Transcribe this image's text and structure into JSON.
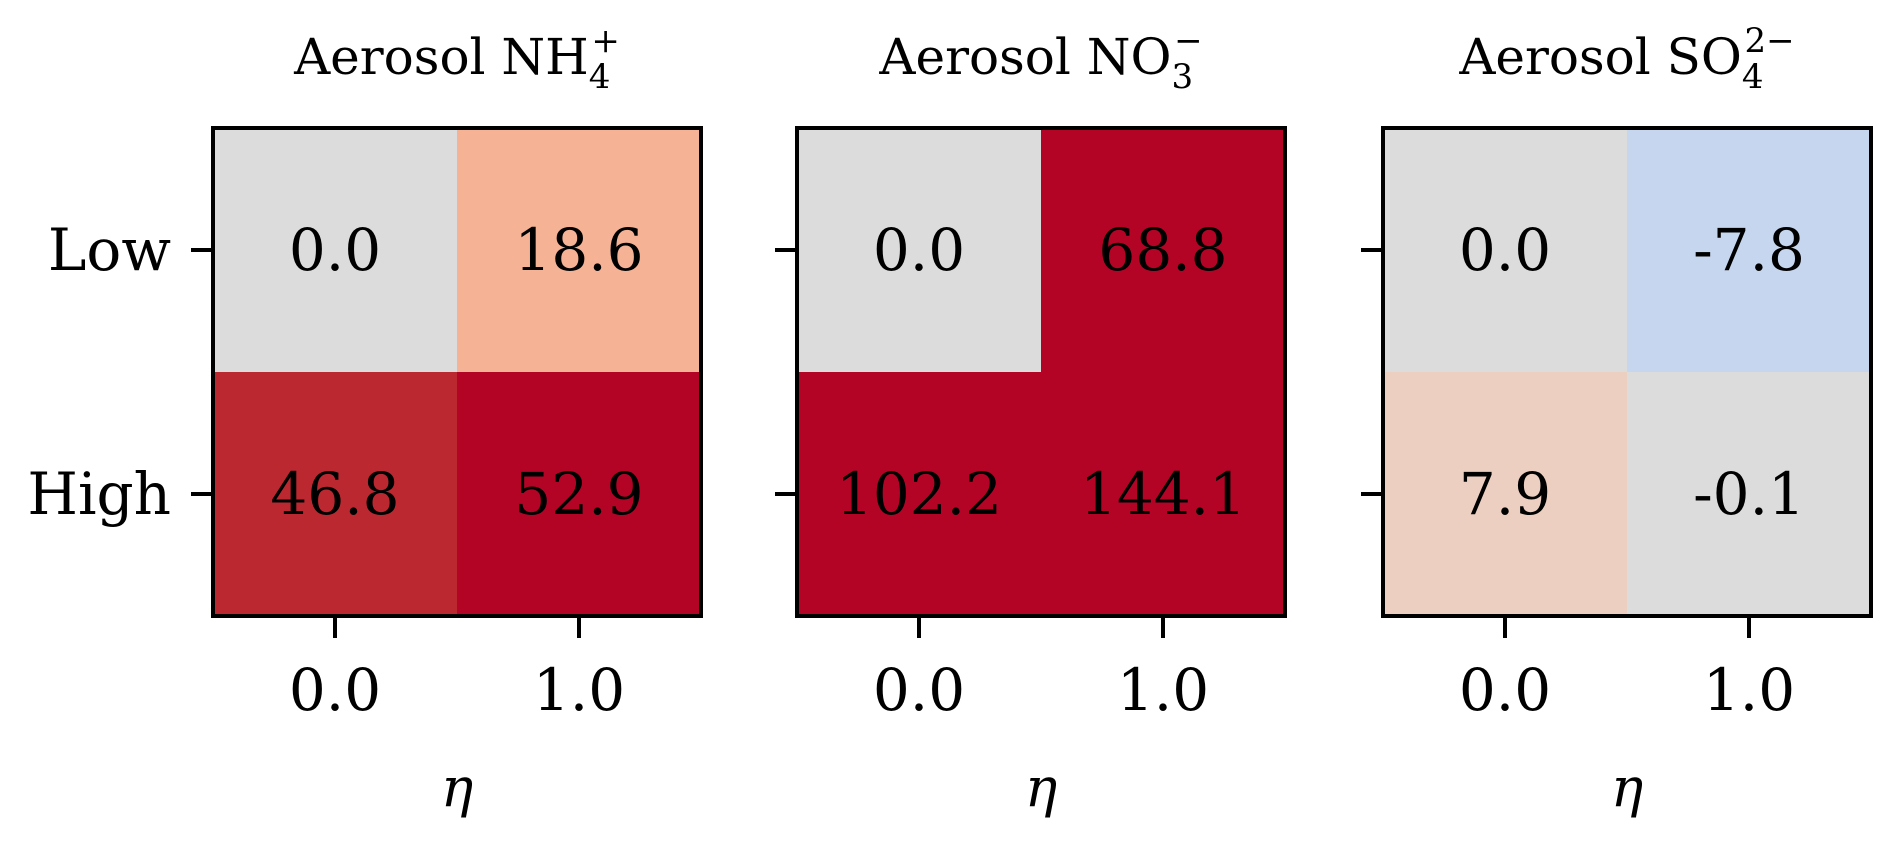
{
  "chart_data": [
    {
      "type": "heatmap",
      "title": {
        "base": "Aerosol NH",
        "sub": "4",
        "sup": "+"
      },
      "x": [
        "0.0",
        "1.0"
      ],
      "y": [
        "Low",
        "High"
      ],
      "xlabel": "η",
      "values": [
        [
          0.0,
          18.6
        ],
        [
          46.8,
          52.9
        ]
      ],
      "labels": [
        [
          "0.0",
          "18.6"
        ],
        [
          "46.8",
          "52.9"
        ]
      ],
      "colors": [
        [
          "#dcdcdc",
          "#f5b294"
        ],
        [
          "#bc2830",
          "#b40426"
        ]
      ]
    },
    {
      "type": "heatmap",
      "title": {
        "base": "Aerosol NO",
        "sub": "3",
        "sup": "−"
      },
      "x": [
        "0.0",
        "1.0"
      ],
      "y": [
        "Low",
        "High"
      ],
      "xlabel": "η",
      "values": [
        [
          0.0,
          68.8
        ],
        [
          102.2,
          144.1
        ]
      ],
      "labels": [
        [
          "0.0",
          "68.8"
        ],
        [
          "102.2",
          "144.1"
        ]
      ],
      "colors": [
        [
          "#dcdcdc",
          "#b40426"
        ],
        [
          "#b40426",
          "#b40426"
        ]
      ]
    },
    {
      "type": "heatmap",
      "title": {
        "base": "Aerosol SO",
        "sub": "4",
        "sup": "2−"
      },
      "x": [
        "0.0",
        "1.0"
      ],
      "y": [
        "Low",
        "High"
      ],
      "xlabel": "η",
      "values": [
        [
          0.0,
          -7.8
        ],
        [
          7.9,
          -0.1
        ]
      ],
      "labels": [
        [
          "0.0",
          "-7.8"
        ],
        [
          "7.9",
          "-0.1"
        ]
      ],
      "colors": [
        [
          "#dcdcdc",
          "#c6d6ee"
        ],
        [
          "#edcfc1",
          "#dcdcdc"
        ]
      ]
    }
  ]
}
